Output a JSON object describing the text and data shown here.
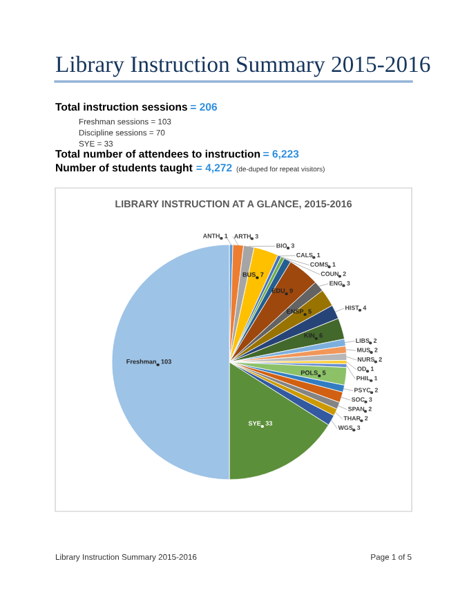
{
  "chart_data": {
    "type": "pie",
    "title": "LIBRARY INSTRUCTION AT A GLANCE, 2015-2016",
    "categories": [
      "ANTH",
      "ARTH",
      "BIO",
      "BUS",
      "CALS",
      "COMS",
      "COUN",
      "EDU",
      "ENG",
      "ENSP",
      "HIST",
      "KIN",
      "LIBS",
      "MUS",
      "NURS",
      "OD",
      "PHIL",
      "POLS",
      "PSYC",
      "SOC",
      "SPAN",
      "THAR",
      "WGS",
      "SYE",
      "Freshman"
    ],
    "values": [
      1,
      3,
      3,
      7,
      1,
      1,
      2,
      9,
      3,
      5,
      4,
      6,
      2,
      2,
      2,
      1,
      1,
      5,
      2,
      3,
      2,
      2,
      3,
      33,
      103
    ],
    "data_labels": true,
    "colors": [
      "#5b9bd5",
      "#ed7d31",
      "#a5a5a5",
      "#ffc000",
      "#4472c4",
      "#70ad47",
      "#255e91",
      "#9e480e",
      "#636363",
      "#997300",
      "#264478",
      "#43682b",
      "#7cafdd",
      "#f1975a",
      "#b7b7b7",
      "#ffcd33",
      "#698ed0",
      "#8cc168",
      "#327dc2",
      "#d26012",
      "#848484",
      "#cc9a00",
      "#335aa1",
      "#5c8f3a",
      "#9dc3e6"
    ],
    "annotations": [
      "Library Instruction Summary 2015-2016",
      "Total instruction sessions",
      "= 206",
      "Freshman sessions = 103",
      "Discipline sessions = 70",
      "SYE = 33",
      "Total number of attendees to instruction",
      "= 6,223",
      "Number of students taught",
      "= 4,272",
      "(de-duped for repeat visitors)",
      "Library Instruction Summary 2015-2016",
      "Page 1 of 5"
    ]
  }
}
